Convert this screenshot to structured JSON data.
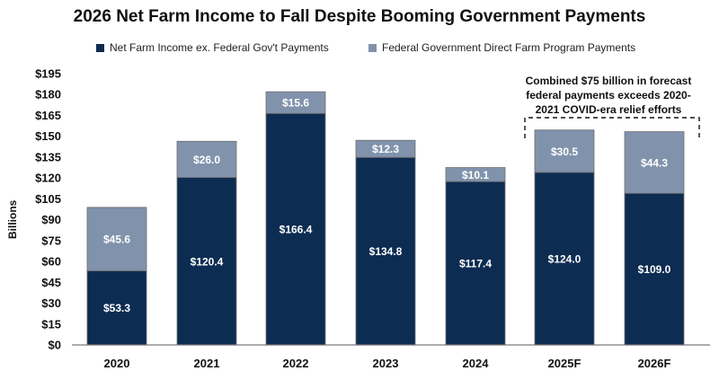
{
  "chart_data": {
    "type": "bar",
    "stacked": true,
    "title": "2026 Net Farm Income to Fall Despite Booming Government Payments",
    "ylabel": "Billions",
    "xlabel": "",
    "ylim": [
      0,
      195
    ],
    "yticks": [
      "$0",
      "$15",
      "$30",
      "$45",
      "$60",
      "$75",
      "$90",
      "$105",
      "$120",
      "$135",
      "$150",
      "$165",
      "$180",
      "$195"
    ],
    "ytick_values": [
      0,
      15,
      30,
      45,
      60,
      75,
      90,
      105,
      120,
      135,
      150,
      165,
      180,
      195
    ],
    "categories": [
      "2020",
      "2021",
      "2022",
      "2023",
      "2024",
      "2025F",
      "2026F"
    ],
    "series": [
      {
        "name": "Net Farm Income ex. Federal Gov't Payments",
        "color": "#0d2c52",
        "values": [
          53.3,
          120.4,
          166.4,
          134.8,
          117.4,
          124.0,
          109.0
        ],
        "labels": [
          "$53.3",
          "$120.4",
          "$166.4",
          "$134.8",
          "$117.4",
          "$124.0",
          "$109.0"
        ]
      },
      {
        "name": "Federal Government Direct Farm Program Payments",
        "color": "#8193ac",
        "values": [
          45.6,
          26.0,
          15.6,
          12.3,
          10.1,
          30.5,
          44.3
        ],
        "labels": [
          "$45.6",
          "$26.0",
          "$15.6",
          "$12.3",
          "$10.1",
          "$30.5",
          "$44.3"
        ]
      }
    ],
    "annotation": "Combined $75 billion in forecast federal payments exceeds 2020-2021 COVID-era relief efforts",
    "annotation_lines": [
      "Combined $75 billion in forecast",
      "federal payments exceeds 2020-",
      "2021 COVID-era relief efforts"
    ],
    "legend_position": "top"
  }
}
